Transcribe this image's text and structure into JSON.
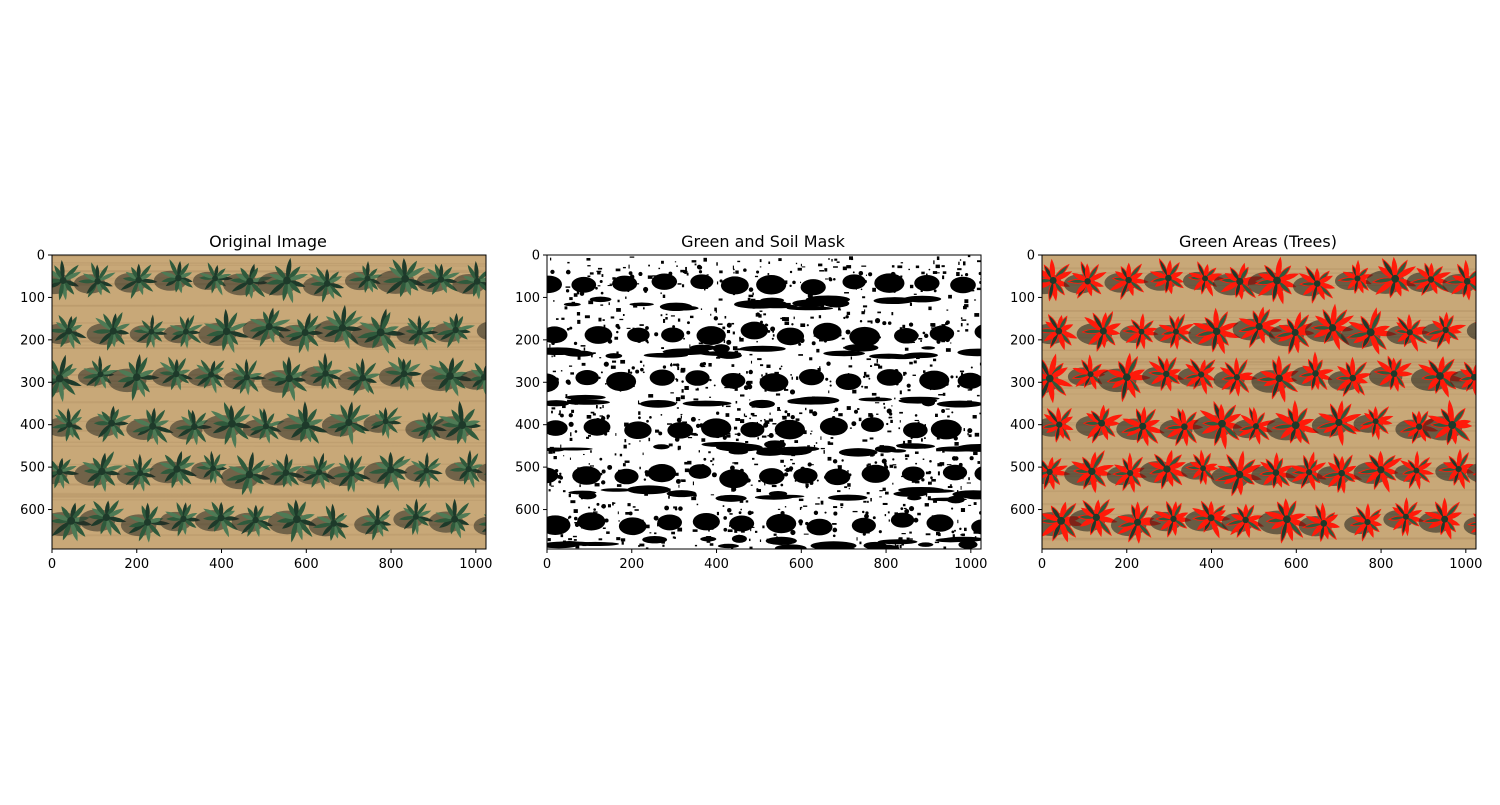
{
  "figure": {
    "panels": [
      {
        "id": "original",
        "title": "Original Image",
        "image_semantics": "aerial-photo-palm-tree-rows",
        "x_ticks": [
          "0",
          "200",
          "400",
          "600",
          "800",
          "1000"
        ],
        "y_ticks": [
          "0",
          "100",
          "200",
          "300",
          "400",
          "500",
          "600"
        ]
      },
      {
        "id": "mask",
        "title": "Green and Soil Mask",
        "image_semantics": "binary-mask-black-white",
        "x_ticks": [
          "0",
          "200",
          "400",
          "600",
          "800",
          "1000"
        ],
        "y_ticks": [
          "0",
          "100",
          "200",
          "300",
          "400",
          "500",
          "600"
        ]
      },
      {
        "id": "overlay",
        "title": "Green Areas (Trees)",
        "image_semantics": "photo-with-red-contour-overlay",
        "x_ticks": [
          "0",
          "200",
          "400",
          "600",
          "800",
          "1000"
        ],
        "y_ticks": [
          "0",
          "100",
          "200",
          "300",
          "400",
          "500",
          "600"
        ]
      }
    ],
    "image_extent": {
      "width": 1024,
      "height": 693
    },
    "colors": {
      "soil": "#c8a878",
      "soil_dark": "#b8976a",
      "tree_dark": "#1e3a2a",
      "tree_mid": "#2f5a3c",
      "tree_light": "#4e7a55",
      "shadow": "#2a2a22",
      "contour": "#ff1a0a",
      "mask_white": "#ffffff",
      "mask_black": "#000000"
    }
  }
}
